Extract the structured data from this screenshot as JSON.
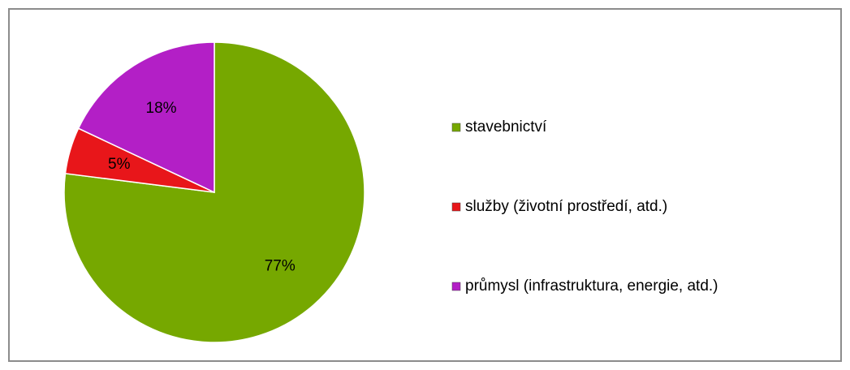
{
  "chart_data": {
    "type": "pie",
    "categories": [
      "stavebnictví",
      "služby (životní prostředí, atd.)",
      "průmysl (infrastruktura, energie, atd.)"
    ],
    "values": [
      77,
      5,
      18
    ],
    "value_labels": [
      "77%",
      "5%",
      "18%"
    ],
    "colors": [
      "#76a800",
      "#e8161a",
      "#b31fc6"
    ],
    "legend": "right"
  }
}
